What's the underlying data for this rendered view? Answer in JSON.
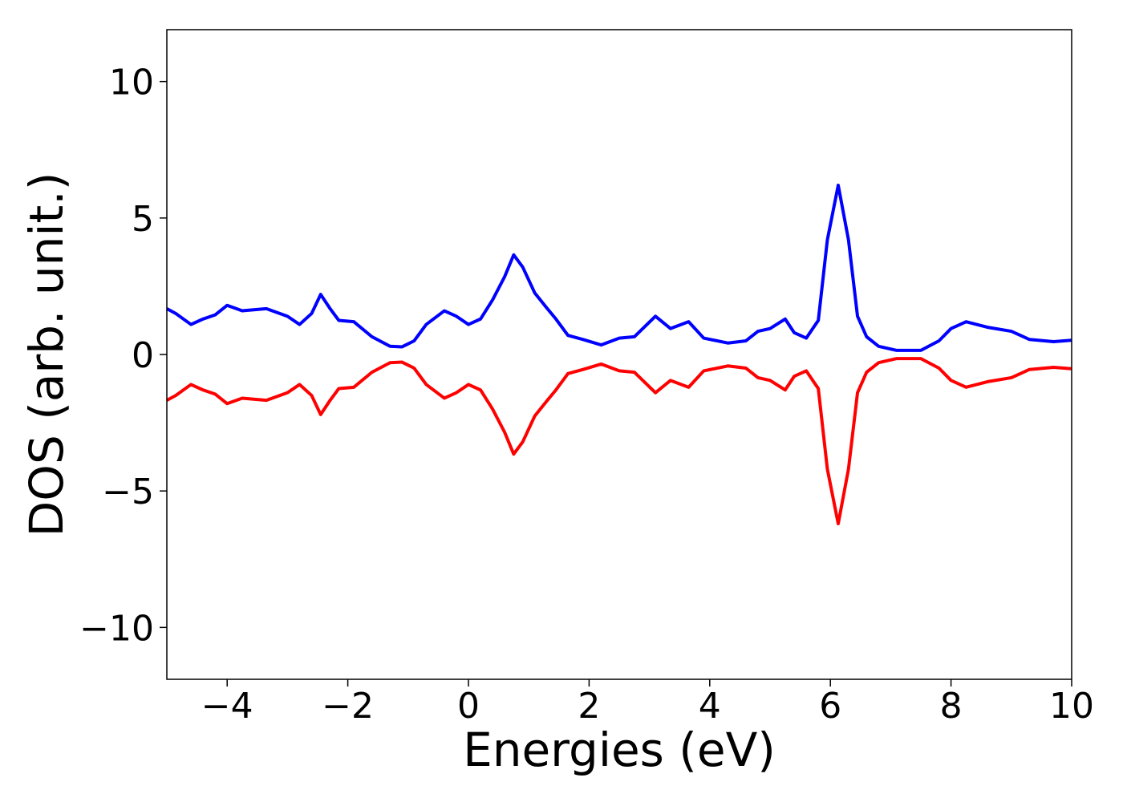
{
  "chart_data": {
    "type": "line",
    "x_label": "Energies (eV)",
    "y_label": "DOS (arb. unit.)",
    "x": [
      -5,
      -4.85,
      -4.6,
      -4.4,
      -4.2,
      -4.0,
      -3.75,
      -3.35,
      -3.0,
      -2.8,
      -2.6,
      -2.45,
      -2.3,
      -2.15,
      -1.9,
      -1.6,
      -1.3,
      -1.1,
      -0.9,
      -0.7,
      -0.4,
      -0.2,
      0.0,
      0.2,
      0.4,
      0.6,
      0.75,
      0.9,
      1.1,
      1.3,
      1.45,
      1.65,
      1.9,
      2.2,
      2.5,
      2.75,
      3.1,
      3.35,
      3.65,
      3.9,
      4.3,
      4.6,
      4.8,
      5.0,
      5.25,
      5.4,
      5.6,
      5.8,
      5.95,
      6.13,
      6.3,
      6.45,
      6.6,
      6.8,
      7.1,
      7.5,
      7.8,
      8.0,
      8.25,
      8.6,
      9.0,
      9.3,
      9.7,
      10.0
    ],
    "series": [
      {
        "color": "#0000ff",
        "values": [
          1.68,
          1.5,
          1.1,
          1.3,
          1.45,
          1.8,
          1.6,
          1.68,
          1.4,
          1.1,
          1.5,
          2.2,
          1.7,
          1.25,
          1.2,
          0.65,
          0.3,
          0.28,
          0.5,
          1.1,
          1.6,
          1.4,
          1.1,
          1.3,
          2.0,
          2.85,
          3.65,
          3.2,
          2.25,
          1.7,
          1.3,
          0.7,
          0.55,
          0.35,
          0.6,
          0.65,
          1.4,
          0.95,
          1.2,
          0.6,
          0.42,
          0.5,
          0.85,
          0.95,
          1.3,
          0.8,
          0.6,
          1.25,
          4.2,
          6.2,
          4.2,
          1.4,
          0.65,
          0.3,
          0.15,
          0.15,
          0.5,
          0.95,
          1.2,
          1.0,
          0.85,
          0.55,
          0.47,
          0.52
        ]
      },
      {
        "color": "#ff0000",
        "values": [
          -1.68,
          -1.5,
          -1.1,
          -1.3,
          -1.45,
          -1.8,
          -1.6,
          -1.68,
          -1.4,
          -1.1,
          -1.5,
          -2.2,
          -1.7,
          -1.25,
          -1.2,
          -0.65,
          -0.3,
          -0.28,
          -0.5,
          -1.1,
          -1.6,
          -1.4,
          -1.1,
          -1.3,
          -2.0,
          -2.85,
          -3.65,
          -3.2,
          -2.25,
          -1.7,
          -1.3,
          -0.7,
          -0.55,
          -0.35,
          -0.6,
          -0.65,
          -1.4,
          -0.95,
          -1.2,
          -0.6,
          -0.42,
          -0.5,
          -0.85,
          -0.95,
          -1.3,
          -0.8,
          -0.6,
          -1.25,
          -4.2,
          -6.2,
          -4.2,
          -1.4,
          -0.65,
          -0.3,
          -0.15,
          -0.15,
          -0.5,
          -0.95,
          -1.2,
          -1.0,
          -0.85,
          -0.55,
          -0.47,
          -0.52
        ]
      }
    ],
    "xlim": [
      -5,
      10
    ],
    "xticks": [
      {
        "value": -4,
        "label": "−4"
      },
      {
        "value": -2,
        "label": "−2"
      },
      0,
      2,
      4,
      6,
      8,
      10
    ],
    "ylim": [
      -11.9,
      11.9
    ],
    "yticks": [
      {
        "value": -10,
        "label": "−10"
      },
      {
        "value": -5,
        "label": "−5"
      },
      0,
      5,
      10
    ],
    "grid": false
  }
}
